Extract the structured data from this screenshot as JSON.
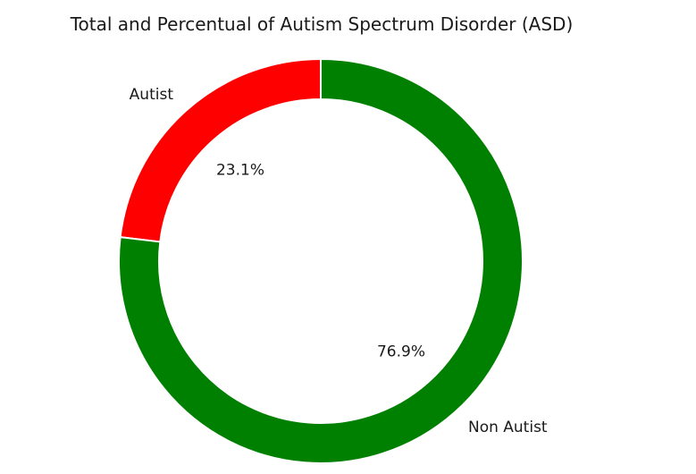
{
  "chart_data": {
    "type": "pie",
    "title": "Total and Percentual of Autism Spectrum Disorder (ASD)",
    "donut": true,
    "categories": [
      "Autist",
      "Non Autist"
    ],
    "values": [
      23.1,
      76.9
    ],
    "percent_labels": [
      "23.1%",
      "76.9%"
    ],
    "colors": [
      "#ff0000",
      "#008000"
    ],
    "start_angle": 90,
    "direction": "counterclockwise",
    "legend": "none"
  }
}
